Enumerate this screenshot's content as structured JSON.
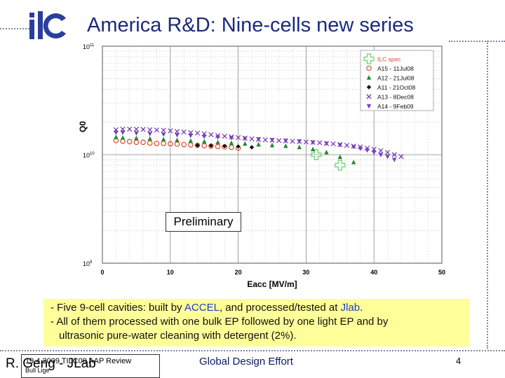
{
  "slide": {
    "title": "America R&D: Nine-cells new series",
    "logo_text": "ilc",
    "preliminary_label": "Preliminary",
    "notes": [
      {
        "prefix": "- Five 9-cell cavities: built by ",
        "hl1": "ACCEL",
        "mid": ", and processed/tested at ",
        "hl2": "Jlab",
        "suffix": "."
      },
      {
        "text": "- All of them processed with one bulk EP followed by one light EP and by"
      },
      {
        "text": "ultrasonic pure-water cleaning with detergent (2%)."
      }
    ],
    "footer": {
      "date_line": "19.4.2009 TILC09 AAP Review",
      "location_line": "Bull Lige",
      "author": "R. Geng - JLab",
      "center": "Global Design Effort",
      "page": "4"
    },
    "colors": {
      "title": "#1a2b7c",
      "highlight": "#1a3cc4",
      "notes_bg": "#ffff99",
      "footer_center": "#0b1a66"
    }
  },
  "chart_data": {
    "type": "scatter",
    "title": "",
    "xlabel": "Eacc [MV/m]",
    "ylabel": "Q0",
    "xlim": [
      0,
      50
    ],
    "ylim_log10": [
      9,
      11
    ],
    "x_ticks": [
      0,
      10,
      20,
      30,
      40,
      50
    ],
    "y_tick_labels": [
      "10^9",
      "10^10",
      "10^11"
    ],
    "grid": true,
    "log_y": true,
    "legend_position": "top-right",
    "series": [
      {
        "name": "ILC spec",
        "marker": "cross",
        "color": "#6ccf6c",
        "points": [
          [
            31.5,
            10000000000.0
          ],
          [
            35,
            8000000000.0
          ]
        ]
      },
      {
        "name": "A15 - 11Jul08",
        "marker": "circle",
        "color": "#d94b2b",
        "points": [
          [
            2,
            13500000000.0
          ],
          [
            3,
            13300000000.0
          ],
          [
            4,
            13200000000.0
          ],
          [
            5,
            13000000000.0
          ],
          [
            6,
            13000000000.0
          ],
          [
            7,
            12800000000.0
          ],
          [
            8,
            12700000000.0
          ],
          [
            9,
            12700000000.0
          ],
          [
            10,
            12600000000.0
          ],
          [
            11,
            12500000000.0
          ],
          [
            12,
            12400000000.0
          ],
          [
            13,
            12300000000.0
          ],
          [
            14,
            12200000000.0
          ],
          [
            15,
            12100000000.0
          ],
          [
            16,
            12000000000.0
          ],
          [
            17,
            11900000000.0
          ],
          [
            18,
            11800000000.0
          ],
          [
            19,
            11700000000.0
          ],
          [
            20,
            11500000000.0
          ]
        ]
      },
      {
        "name": "A12 - 21Jul08",
        "marker": "triangle",
        "color": "#1f8a2e",
        "points": [
          [
            2,
            14500000000.0
          ],
          [
            3,
            14300000000.0
          ],
          [
            5,
            14200000000.0
          ],
          [
            7,
            14000000000.0
          ],
          [
            9,
            13800000000.0
          ],
          [
            11,
            13600000000.0
          ],
          [
            13,
            13400000000.0
          ],
          [
            15,
            13200000000.0
          ],
          [
            17,
            13000000000.0
          ],
          [
            19,
            12800000000.0
          ],
          [
            21,
            12600000000.0
          ],
          [
            23,
            12400000000.0
          ],
          [
            25,
            12200000000.0
          ],
          [
            27,
            12000000000.0
          ],
          [
            29,
            11700000000.0
          ],
          [
            31,
            11200000000.0
          ],
          [
            33,
            10500000000.0
          ],
          [
            35,
            9500000000.0
          ],
          [
            37,
            8500000000.0
          ]
        ]
      },
      {
        "name": "A11 - 21Oct08",
        "marker": "diamond",
        "color": "#111111",
        "points": [
          [
            14,
            12200000000.0
          ],
          [
            16,
            12100000000.0
          ],
          [
            18,
            12000000000.0
          ],
          [
            20,
            11900000000.0
          ],
          [
            22,
            11700000000.0
          ]
        ]
      },
      {
        "name": "A13 - 8Dec08",
        "marker": "x",
        "color": "#6a2aa8",
        "points": [
          [
            2,
            17000000000.0
          ],
          [
            3,
            17200000000.0
          ],
          [
            4,
            17200000000.0
          ],
          [
            5,
            17200000000.0
          ],
          [
            6,
            17100000000.0
          ],
          [
            7,
            17000000000.0
          ],
          [
            8,
            16900000000.0
          ],
          [
            9,
            16800000000.0
          ],
          [
            10,
            16600000000.0
          ],
          [
            11,
            16400000000.0
          ],
          [
            12,
            16200000000.0
          ],
          [
            13,
            16000000000.0
          ],
          [
            14,
            15800000000.0
          ],
          [
            15,
            15600000000.0
          ],
          [
            16,
            15300000000.0
          ],
          [
            17,
            15000000000.0
          ],
          [
            18,
            14800000000.0
          ],
          [
            19,
            14600000000.0
          ],
          [
            20,
            14400000000.0
          ],
          [
            21,
            14200000000.0
          ],
          [
            22,
            14000000000.0
          ],
          [
            23,
            13800000000.0
          ],
          [
            24,
            13700000000.0
          ],
          [
            25,
            13600000000.0
          ],
          [
            26,
            13500000000.0
          ],
          [
            27,
            13400000000.0
          ],
          [
            28,
            13300000000.0
          ],
          [
            29,
            13200000000.0
          ],
          [
            30,
            13100000000.0
          ],
          [
            31,
            13000000000.0
          ],
          [
            32,
            12900000000.0
          ],
          [
            33,
            12700000000.0
          ],
          [
            34,
            12600000000.0
          ],
          [
            35,
            12400000000.0
          ],
          [
            36,
            12200000000.0
          ],
          [
            37,
            12000000000.0
          ],
          [
            38,
            11800000000.0
          ],
          [
            39,
            11500000000.0
          ],
          [
            40,
            11200000000.0
          ],
          [
            41,
            10900000000.0
          ],
          [
            42,
            10500000000.0
          ],
          [
            43,
            10000000000.0
          ],
          [
            44,
            9600000000.0
          ]
        ]
      },
      {
        "name": "A14 - 9Feb09",
        "marker": "triangle-down",
        "color": "#7a3cc8",
        "points": [
          [
            2,
            16000000000.0
          ],
          [
            3,
            16000000000.0
          ],
          [
            5,
            15800000000.0
          ],
          [
            7,
            15600000000.0
          ],
          [
            9,
            15400000000.0
          ],
          [
            11,
            15200000000.0
          ],
          [
            13,
            15000000000.0
          ],
          [
            15,
            14700000000.0
          ],
          [
            17,
            14500000000.0
          ],
          [
            19,
            14300000000.0
          ],
          [
            21,
            14100000000.0
          ],
          [
            23,
            13900000000.0
          ],
          [
            25,
            13700000000.0
          ],
          [
            27,
            13500000000.0
          ],
          [
            29,
            13300000000.0
          ],
          [
            31,
            13000000000.0
          ],
          [
            33,
            12700000000.0
          ],
          [
            35,
            12300000000.0
          ],
          [
            37,
            11800000000.0
          ],
          [
            38,
            11400000000.0
          ],
          [
            39,
            11000000000.0
          ],
          [
            40,
            10500000000.0
          ],
          [
            41,
            10000000000.0
          ],
          [
            42,
            9600000000.0
          ],
          [
            43,
            9000000000.0
          ]
        ]
      }
    ]
  }
}
